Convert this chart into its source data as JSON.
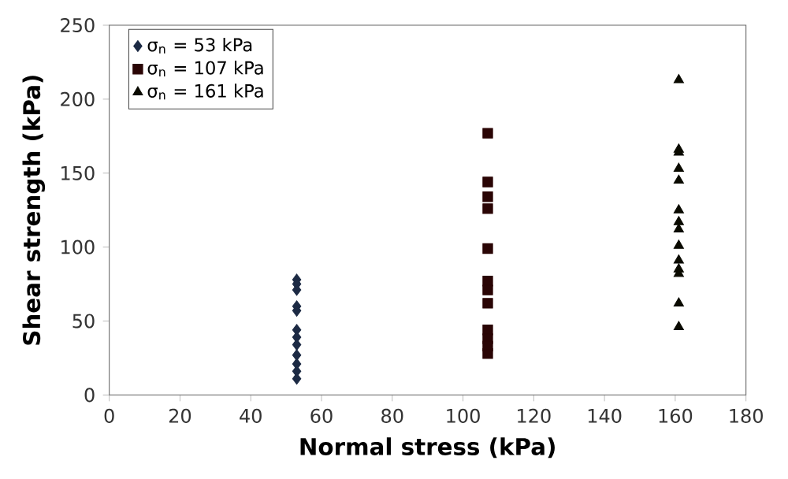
{
  "chart_data": {
    "type": "scatter",
    "xlabel": "Normal stress (kPa)",
    "ylabel": "Shear strength (kPa)",
    "xlim": [
      0,
      180
    ],
    "xticks": [
      0,
      20,
      40,
      60,
      80,
      100,
      120,
      140,
      160,
      180
    ],
    "ylim": [
      0,
      250
    ],
    "yticks": [
      0,
      50,
      100,
      150,
      200,
      250
    ],
    "legend": "top left",
    "grid": false,
    "series": [
      {
        "name": "σ$_{n}$ = 53 kPa",
        "color": "#1c2a44",
        "marker": "diamond",
        "x": [
          53,
          53,
          53,
          53,
          53,
          53,
          53,
          53,
          53,
          53,
          53,
          53
        ],
        "values": [
          78,
          75,
          71,
          60,
          57,
          44,
          39,
          34,
          27,
          21,
          16,
          11
        ]
      },
      {
        "name": "σ$_{n}$ = 107 kPa",
        "color": "#2a0505",
        "marker": "square",
        "x": [
          107,
          107,
          107,
          107,
          107,
          107,
          107,
          107,
          107,
          107,
          107,
          107
        ],
        "values": [
          177,
          144,
          134,
          126,
          99,
          77,
          71,
          62,
          44,
          38,
          33,
          28
        ]
      },
      {
        "name": "σ$_{n}$ = 161 kPa",
        "color": "#0a0a00",
        "marker": "triangle",
        "x": [
          161,
          161,
          161,
          161,
          161,
          161,
          161,
          161,
          161,
          161,
          161,
          161,
          161,
          161
        ],
        "values": [
          213,
          166,
          164,
          153,
          145,
          125,
          117,
          112,
          101,
          91,
          85,
          82,
          62,
          46
        ]
      }
    ]
  }
}
